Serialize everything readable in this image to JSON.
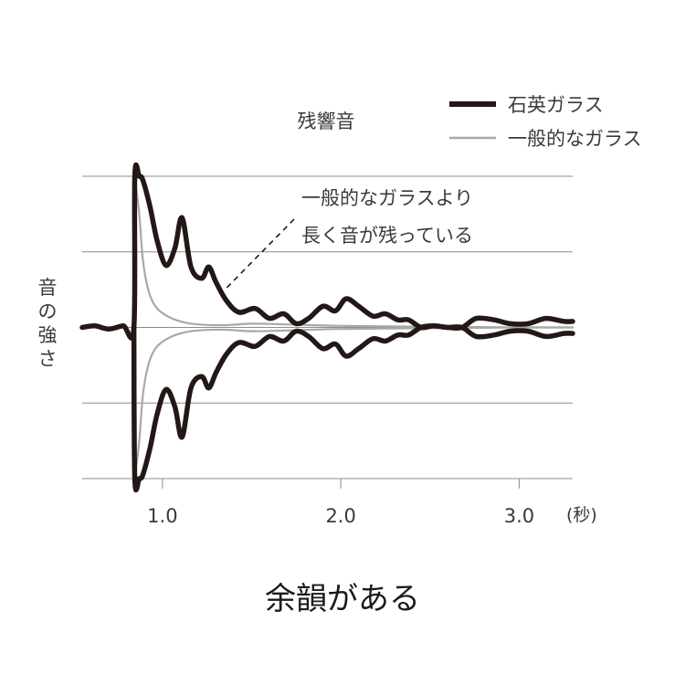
{
  "caption": "余韻がある",
  "chart_data": {
    "type": "line",
    "title": "",
    "subtitle": "残響音",
    "ylabel": "音の強さ",
    "xlabel": "",
    "x_unit": "(秒)",
    "xlim": [
      0.55,
      3.3
    ],
    "ylim": [
      -2,
      2
    ],
    "grid": true,
    "legend": "top-right",
    "xticks": [
      {
        "value": 1.0,
        "label": "1.0"
      },
      {
        "value": 2.0,
        "label": "2.0"
      },
      {
        "value": 3.0,
        "label": "3.0"
      }
    ],
    "annotation": {
      "lines": [
        "一般的なガラスより",
        "長く音が残っている"
      ],
      "points_to": [
        1.35,
        0.5
      ]
    },
    "series": [
      {
        "name": "石英ガラス",
        "color": "#231815",
        "style": "thick",
        "upper": [
          [
            0.55,
            0.0
          ],
          [
            0.62,
            0.02
          ],
          [
            0.7,
            -0.02
          ],
          [
            0.78,
            0.02
          ],
          [
            0.84,
            0.0
          ],
          [
            0.845,
            2.0
          ],
          [
            0.87,
            2.0
          ],
          [
            0.89,
            1.95
          ],
          [
            0.93,
            1.6
          ],
          [
            0.97,
            1.15
          ],
          [
            1.02,
            0.82
          ],
          [
            1.07,
            1.05
          ],
          [
            1.11,
            1.45
          ],
          [
            1.16,
            0.8
          ],
          [
            1.22,
            0.65
          ],
          [
            1.26,
            0.8
          ],
          [
            1.3,
            0.6
          ],
          [
            1.36,
            0.35
          ],
          [
            1.43,
            0.2
          ],
          [
            1.52,
            0.25
          ],
          [
            1.6,
            0.12
          ],
          [
            1.68,
            0.18
          ],
          [
            1.75,
            0.05
          ],
          [
            1.82,
            0.12
          ],
          [
            1.9,
            0.28
          ],
          [
            1.97,
            0.22
          ],
          [
            2.03,
            0.38
          ],
          [
            2.1,
            0.28
          ],
          [
            2.18,
            0.15
          ],
          [
            2.25,
            0.18
          ],
          [
            2.32,
            0.1
          ],
          [
            2.38,
            0.1
          ],
          [
            2.45,
            0.0
          ],
          [
            2.52,
            0.02
          ],
          [
            2.6,
            0.0
          ],
          [
            2.68,
            0.0
          ],
          [
            2.76,
            -0.12
          ],
          [
            2.86,
            -0.1
          ],
          [
            2.95,
            -0.05
          ],
          [
            3.05,
            -0.05
          ],
          [
            3.15,
            -0.12
          ],
          [
            3.25,
            -0.08
          ],
          [
            3.3,
            -0.08
          ]
        ],
        "lower": [
          [
            0.84,
            0.0
          ],
          [
            0.845,
            -2.0
          ],
          [
            0.87,
            -2.0
          ],
          [
            0.89,
            -1.95
          ],
          [
            0.93,
            -1.6
          ],
          [
            0.97,
            -1.15
          ],
          [
            1.02,
            -0.82
          ],
          [
            1.07,
            -1.05
          ],
          [
            1.11,
            -1.45
          ],
          [
            1.16,
            -0.8
          ],
          [
            1.22,
            -0.65
          ],
          [
            1.26,
            -0.8
          ],
          [
            1.3,
            -0.6
          ],
          [
            1.36,
            -0.35
          ],
          [
            1.43,
            -0.2
          ],
          [
            1.52,
            -0.25
          ],
          [
            1.6,
            -0.12
          ],
          [
            1.68,
            -0.18
          ],
          [
            1.75,
            -0.05
          ],
          [
            1.82,
            -0.12
          ],
          [
            1.9,
            -0.28
          ],
          [
            1.97,
            -0.22
          ],
          [
            2.03,
            -0.38
          ],
          [
            2.1,
            -0.28
          ],
          [
            2.18,
            -0.15
          ],
          [
            2.25,
            -0.18
          ],
          [
            2.32,
            -0.1
          ],
          [
            2.38,
            -0.1
          ],
          [
            2.45,
            0.0
          ],
          [
            2.52,
            0.02
          ],
          [
            2.6,
            0.0
          ],
          [
            2.68,
            0.0
          ],
          [
            2.76,
            0.12
          ],
          [
            2.86,
            0.1
          ],
          [
            2.95,
            0.05
          ],
          [
            3.05,
            0.05
          ],
          [
            3.15,
            0.12
          ],
          [
            3.25,
            0.08
          ],
          [
            3.3,
            0.08
          ]
        ]
      },
      {
        "name": "一般的なガラス",
        "color": "#a8a8a8",
        "style": "thin",
        "upper": [
          [
            0.85,
            1.9
          ],
          [
            0.87,
            1.5
          ],
          [
            0.89,
            0.9
          ],
          [
            0.92,
            0.5
          ],
          [
            0.96,
            0.28
          ],
          [
            1.02,
            0.16
          ],
          [
            1.1,
            0.08
          ],
          [
            1.2,
            0.04
          ],
          [
            1.35,
            0.03
          ],
          [
            1.5,
            0.05
          ],
          [
            1.7,
            0.04
          ],
          [
            2.0,
            0.02
          ],
          [
            2.5,
            0.01
          ],
          [
            3.0,
            0.0
          ],
          [
            3.3,
            0.0
          ]
        ],
        "lower": [
          [
            0.85,
            -1.9
          ],
          [
            0.87,
            -1.5
          ],
          [
            0.89,
            -0.9
          ],
          [
            0.92,
            -0.5
          ],
          [
            0.96,
            -0.28
          ],
          [
            1.02,
            -0.16
          ],
          [
            1.1,
            -0.08
          ],
          [
            1.2,
            -0.04
          ],
          [
            1.35,
            -0.03
          ],
          [
            1.5,
            -0.05
          ],
          [
            1.7,
            -0.04
          ],
          [
            2.0,
            -0.02
          ],
          [
            2.5,
            -0.01
          ],
          [
            3.0,
            0.0
          ],
          [
            3.3,
            0.0
          ]
        ]
      }
    ]
  }
}
